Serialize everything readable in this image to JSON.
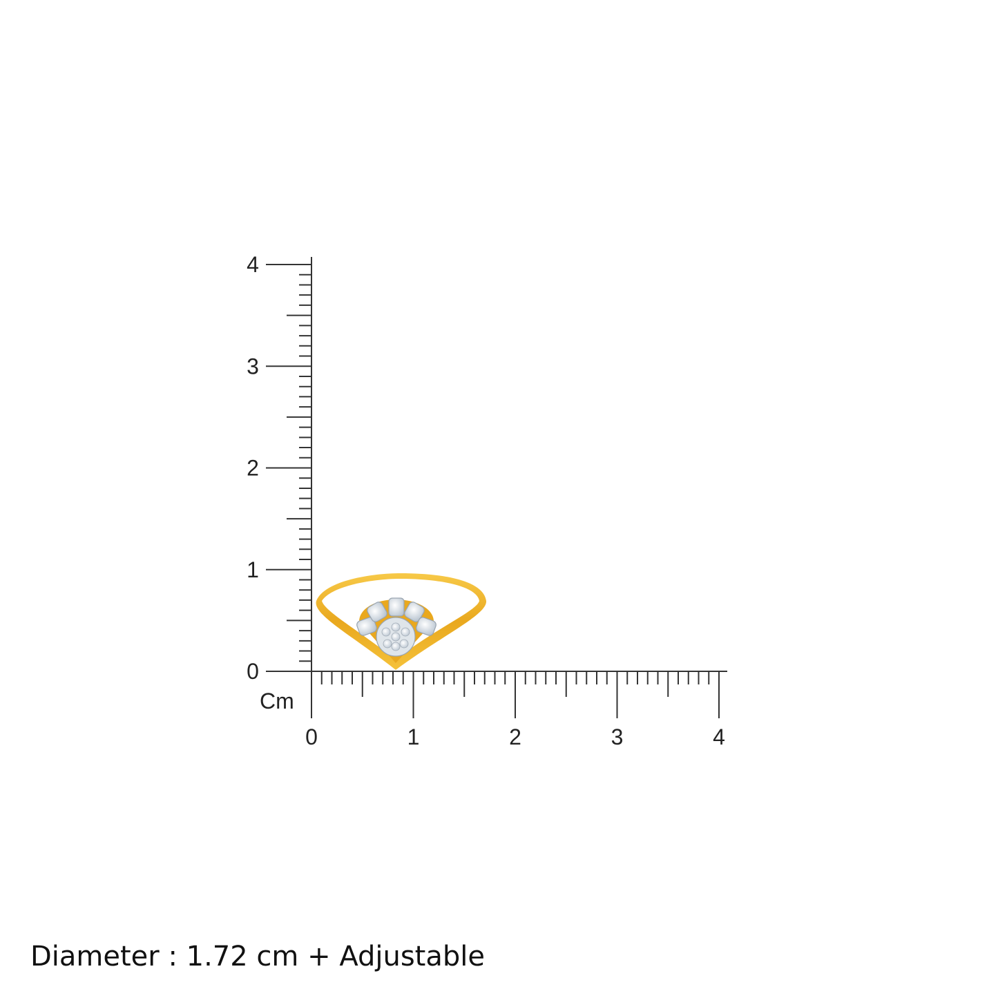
{
  "ruler": {
    "unit_label": "Cm",
    "x_ticks": [
      "0",
      "1",
      "2",
      "3",
      "4"
    ],
    "y_ticks": [
      "0",
      "1",
      "2",
      "3",
      "4"
    ],
    "range_cm": [
      0,
      4
    ],
    "minor_step_cm": 0.1,
    "color": "#333333"
  },
  "product": {
    "type": "ring",
    "metal_color": "#F0B429",
    "stone_color": "#E8EEF4"
  },
  "caption": "Diameter : 1.72 cm + Adjustable"
}
